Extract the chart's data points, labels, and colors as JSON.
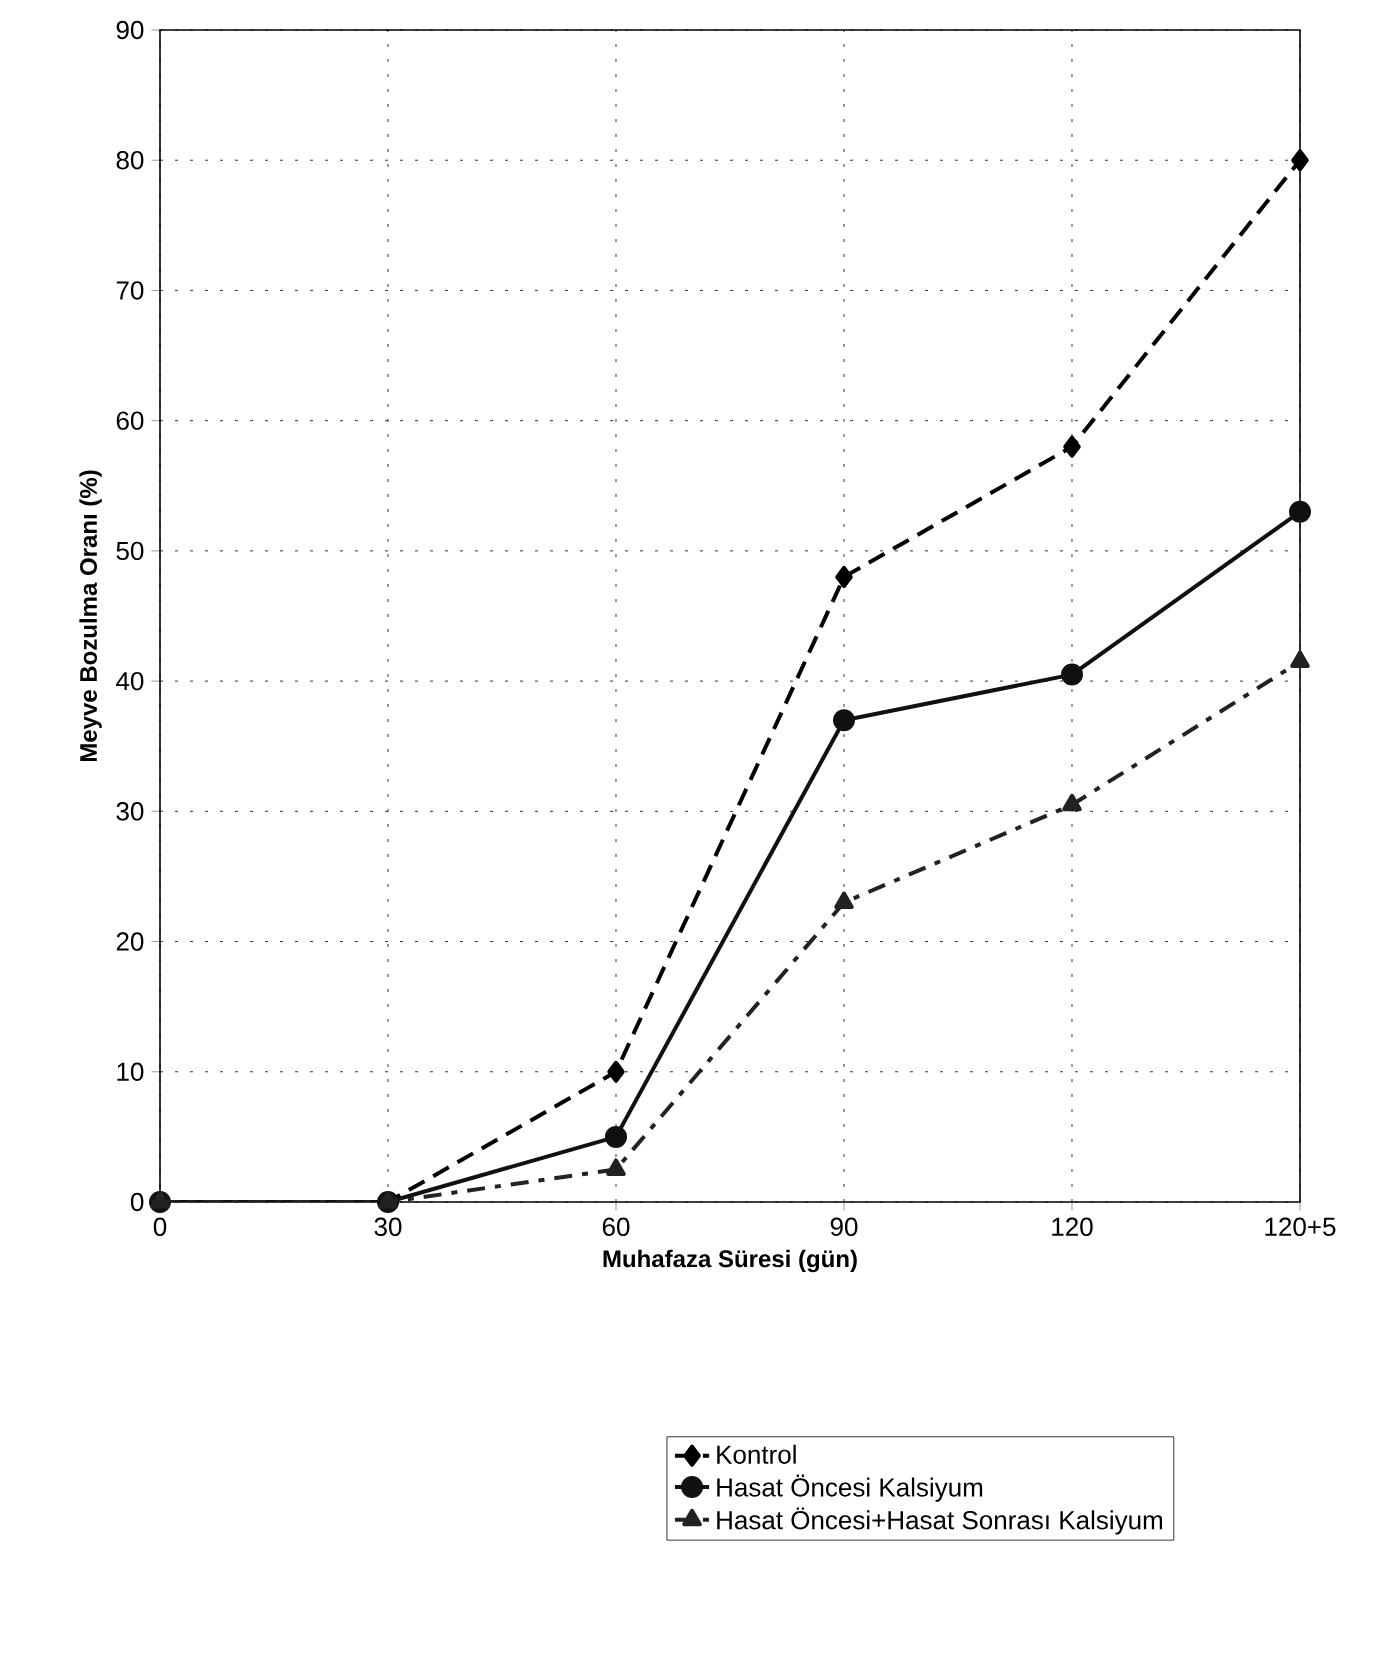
{
  "chart_data": {
    "type": "line",
    "xlabel": "Muhafaza Süresi (gün)",
    "ylabel": "Meyve Bozulma Oranı (%)",
    "categories": [
      "0",
      "30",
      "60",
      "90",
      "120",
      "120+5"
    ],
    "series": [
      {
        "name": "Kontrol",
        "color": "#000000",
        "marker": "diamond",
        "line_style": "dashed",
        "values": [
          0,
          0,
          10,
          48,
          58,
          80
        ]
      },
      {
        "name": "Hasat Öncesi Kalsiyum",
        "color": "#111111",
        "marker": "circle",
        "line_style": "solid",
        "values": [
          0,
          0,
          5,
          37,
          40.5,
          53
        ]
      },
      {
        "name": "Hasat Öncesi+Hasat Sonrası Kalsiyum",
        "color": "#222222",
        "marker": "triangle",
        "line_style": "dashdot",
        "values": [
          0,
          0,
          2.5,
          23,
          30.5,
          41.5
        ]
      }
    ],
    "ylim": [
      0,
      90
    ],
    "yticks": [
      0,
      10,
      20,
      30,
      40,
      50,
      60,
      70,
      80,
      90
    ],
    "grid": true,
    "legend": "bottom"
  }
}
